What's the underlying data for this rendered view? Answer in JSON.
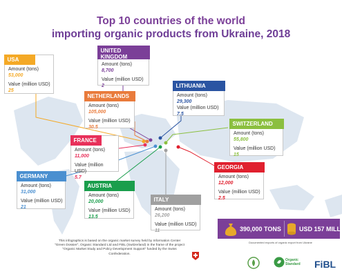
{
  "title_line1": "Top 10 countries of the world",
  "title_line2": "importing organic products from Ukraine, 2018",
  "colors": {
    "title": "#7b3f98",
    "usa": "#f4a926",
    "uk": "#7b3f98",
    "lithuania": "#2a54a2",
    "netherlands": "#e97b3c",
    "switzerland": "#8bbf3f",
    "france": "#e8305a",
    "georgia": "#e0202e",
    "germany": "#4a8fd0",
    "austria": "#1a9e4c",
    "italy": "#a0a0a0"
  },
  "chart_data": {
    "type": "table",
    "title": "Top 10 countries of the world importing organic products from Ukraine, 2018",
    "columns": [
      "Amount (tons)",
      "Value (million USD)"
    ],
    "countries": [
      {
        "key": "usa",
        "name": "USA",
        "amount": "53,000",
        "value": "25"
      },
      {
        "key": "uk",
        "name": "UNITED KINGDOM",
        "amount": "8,700",
        "value": "2"
      },
      {
        "key": "lithuania",
        "name": "LITHUANIA",
        "amount": "29,300",
        "value": "7.5"
      },
      {
        "key": "netherlands",
        "name": "NETHERLANDS",
        "amount": "105,000",
        "value": "30.5"
      },
      {
        "key": "switzerland",
        "name": "SWITZERLAND",
        "amount": "55,800",
        "value": "15"
      },
      {
        "key": "france",
        "name": "FRANCE",
        "amount": "11,000",
        "value": "5.7"
      },
      {
        "key": "georgia",
        "name": "GEORGIA",
        "amount": "12,000",
        "value": "2.5"
      },
      {
        "key": "germany",
        "name": "GERMANY",
        "amount": "31,000",
        "value": "21"
      },
      {
        "key": "austria",
        "name": "AUSTRIA",
        "amount": "20,000",
        "value": "13.5"
      },
      {
        "key": "italy",
        "name": "ITALY",
        "amount": "26,200",
        "value": "11"
      }
    ]
  },
  "labels": {
    "amount": "Amount (tons)",
    "value": "Value (million USD)"
  },
  "totals": {
    "tons": "390,000 TONS",
    "usd": "USD 157 MILLION",
    "note": "Documented exports of organic export from Ukraine"
  },
  "footnote": "This infographics is based on the organic market survey held by Information Center \"Green Dossier\", Organic Standard Ltd and FiBL (Switzerland) in the frame of the project \"Organic Market Study and Policy Development Support\" funded by the Swiss Confederation.",
  "logos": {
    "organic": "Organic Standard",
    "fibl": "FiBL"
  }
}
